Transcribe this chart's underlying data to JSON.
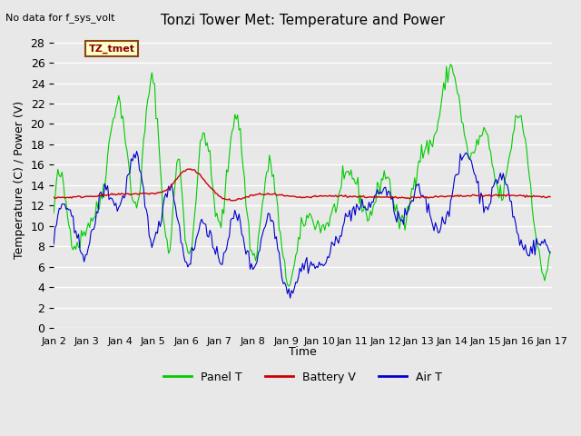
{
  "title": "Tonzi Tower Met: Temperature and Power",
  "ylabel": "Temperature (C) / Power (V)",
  "xlabel": "Time",
  "top_left_note": "No data for f_sys_volt",
  "legend_label": "TZ_tmet",
  "ylim": [
    0,
    29
  ],
  "yticks": [
    0,
    2,
    4,
    6,
    8,
    10,
    12,
    14,
    16,
    18,
    20,
    22,
    24,
    26,
    28
  ],
  "xtick_labels": [
    "Jan 2",
    "Jan 3",
    "Jan 4",
    "Jan 5",
    "Jan 6",
    "Jan 7",
    "Jan 8",
    "Jan 9",
    "Jan 10",
    "Jan 11",
    "Jan 12",
    "Jan 13",
    "Jan 14",
    "Jan 15",
    "Jan 16",
    "Jan 17"
  ],
  "background_color": "#e8e8e8",
  "plot_bg_color": "#e8e8e8",
  "grid_color": "#ffffff",
  "series_colors": {
    "panel": "#00cc00",
    "battery": "#cc0000",
    "air": "#0000cc"
  },
  "legend_entries": [
    "Panel T",
    "Battery V",
    "Air T"
  ],
  "legend_colors": [
    "#00cc00",
    "#cc0000",
    "#0000cc"
  ]
}
